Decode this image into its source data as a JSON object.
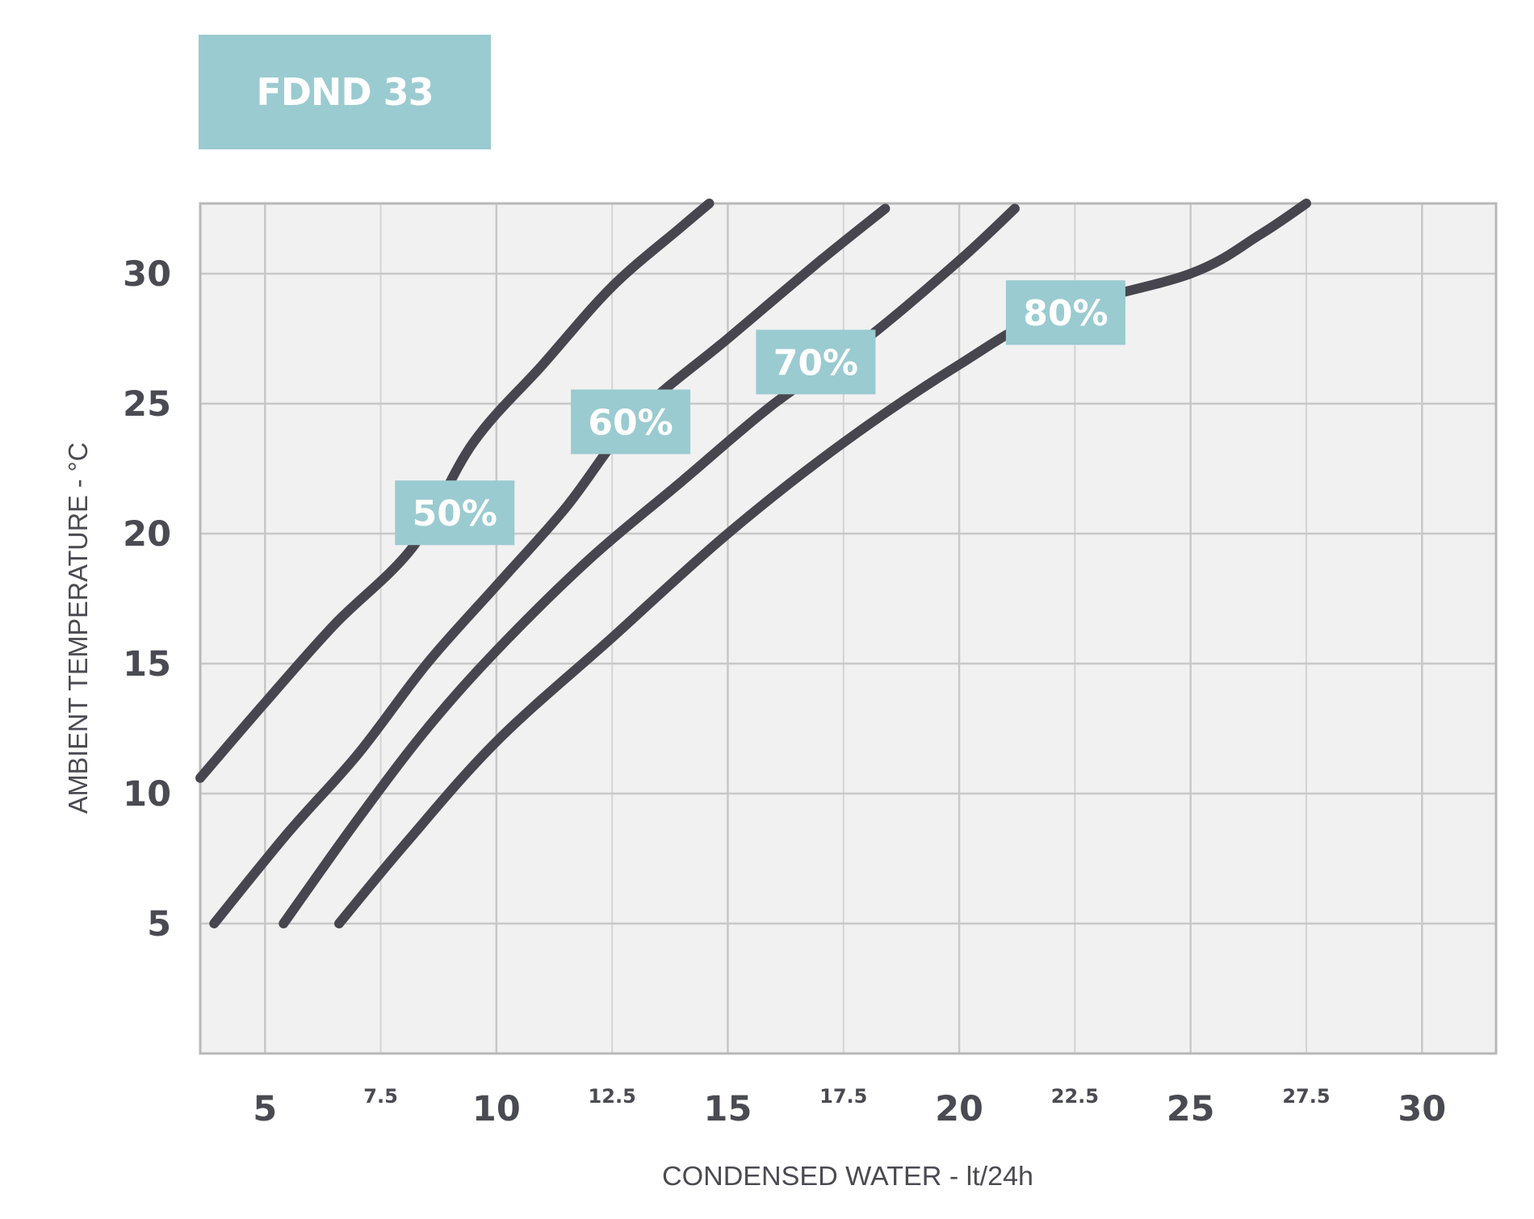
{
  "chart_data": {
    "type": "line",
    "title": "FDND 33",
    "xlabel": "CONDENSED WATER - lt/24h",
    "ylabel": "AMBIENT TEMPERATURE - °C",
    "xlim": [
      3.6,
      31.6
    ],
    "ylim": [
      0,
      32.7
    ],
    "x_ticks": [
      {
        "value": 5,
        "label": "5",
        "major": true
      },
      {
        "value": 7.5,
        "label": "7.5",
        "major": false
      },
      {
        "value": 10,
        "label": "10",
        "major": true
      },
      {
        "value": 12.5,
        "label": "12.5",
        "major": false
      },
      {
        "value": 15,
        "label": "15",
        "major": true
      },
      {
        "value": 17.5,
        "label": "17.5",
        "major": false
      },
      {
        "value": 20,
        "label": "20",
        "major": true
      },
      {
        "value": 22.5,
        "label": "22.5",
        "major": false
      },
      {
        "value": 25,
        "label": "25",
        "major": true
      },
      {
        "value": 27.5,
        "label": "27.5",
        "major": false
      },
      {
        "value": 30,
        "label": "30",
        "major": true
      }
    ],
    "y_ticks": [
      {
        "value": 5,
        "label": "5"
      },
      {
        "value": 10,
        "label": "10"
      },
      {
        "value": 15,
        "label": "15"
      },
      {
        "value": 20,
        "label": "20"
      },
      {
        "value": 25,
        "label": "25"
      },
      {
        "value": 30,
        "label": "30"
      }
    ],
    "grid": true,
    "legend": "inline labels",
    "series": [
      {
        "name": "50%",
        "x": [
          3.6,
          5,
          6.5,
          8.2,
          9.5,
          11,
          12.5,
          14,
          14.6
        ],
        "y": [
          10.6,
          13.5,
          16.5,
          19.5,
          23.5,
          26.5,
          29.5,
          31.8,
          32.7
        ]
      },
      {
        "name": "60%",
        "x": [
          3.9,
          5.5,
          7,
          8.5,
          10,
          11.5,
          13,
          15,
          17,
          18.4
        ],
        "y": [
          5,
          8.5,
          11.5,
          15,
          18,
          21,
          24.5,
          27.5,
          30.5,
          32.5
        ]
      },
      {
        "name": "70%",
        "x": [
          5.4,
          7,
          8.5,
          10,
          12,
          14,
          16,
          18,
          20,
          21.2
        ],
        "y": [
          5,
          9,
          12.5,
          15.5,
          19,
          22,
          25,
          27.5,
          30.5,
          32.5
        ]
      },
      {
        "name": "80%",
        "x": [
          6.6,
          8,
          10,
          12.5,
          15,
          17.5,
          20,
          22,
          25,
          26.5,
          27.5
        ],
        "y": [
          5,
          8,
          12,
          16,
          20,
          23.5,
          26.5,
          28.5,
          30,
          31.5,
          32.7
        ]
      }
    ],
    "series_labels": [
      {
        "series": "50%",
        "x": 9.1,
        "y": 20.8
      },
      {
        "series": "60%",
        "x": 12.9,
        "y": 24.3
      },
      {
        "series": "70%",
        "x": 16.9,
        "y": 26.6
      },
      {
        "series": "80%",
        "x": 22.3,
        "y": 28.5
      }
    ],
    "colors": {
      "line": "#47464f",
      "label_box": "#9acbd0",
      "label_text": "#ffffff",
      "plot_background": "#f1f1f1",
      "grid": "#c8c8c8",
      "minor_grid": "#d4d4d4",
      "axis_text": "#4a4a52"
    }
  }
}
